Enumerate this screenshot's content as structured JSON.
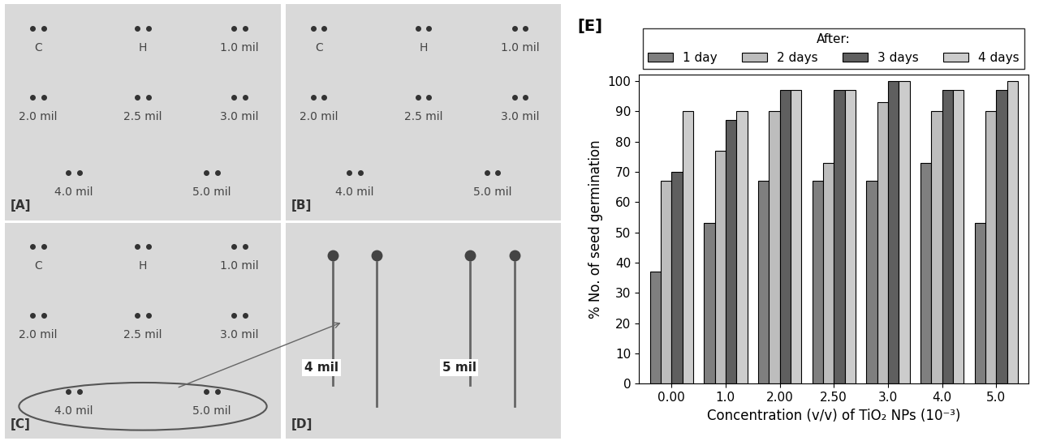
{
  "chart_data": {
    "type": "bar",
    "title": "[E]",
    "x_label": "Concentration (v/v) of TiO₂ NPs (10⁻³)",
    "y_label": "% No. of seed germination",
    "categories": [
      "0.00",
      "1.0",
      "2.00",
      "2.50",
      "3.0",
      "4.0",
      "5.0"
    ],
    "legend_title": "After:",
    "series": [
      {
        "name": "1 day",
        "color": "#7f7f7f",
        "values": [
          37,
          53,
          67,
          67,
          67,
          73,
          53
        ]
      },
      {
        "name": "2 days",
        "color": "#bdbdbd",
        "values": [
          67,
          77,
          90,
          73,
          93,
          90,
          90
        ]
      },
      {
        "name": "3 days",
        "color": "#5f5f5f",
        "values": [
          70,
          87,
          97,
          97,
          100,
          97,
          97
        ]
      },
      {
        "name": "4 days",
        "color": "#cccccc",
        "values": [
          90,
          90,
          97,
          97,
          100,
          97,
          100
        ]
      }
    ],
    "ylim": [
      0,
      102
    ],
    "yticks": [
      0,
      10,
      20,
      30,
      40,
      50,
      60,
      70,
      80,
      90,
      100
    ],
    "legend": "upper center",
    "grid": false
  },
  "panels": [
    {
      "label": "[A]",
      "texts": [
        "C",
        "H",
        "1.0 mil",
        "2.0 mil",
        "2.5 mil",
        "3.0 mil",
        "4.0 mil",
        "5.0 mil"
      ]
    },
    {
      "label": "[B]",
      "texts": [
        "C",
        "H",
        "1.0 mil",
        "2.0 mil",
        "2.5 mil",
        "3.0 mil",
        "4.0 mil",
        "5.0 mil"
      ]
    },
    {
      "label": "[C]",
      "texts": [
        "C",
        "H",
        "1.0 mil",
        "2.0 mil",
        "2.5 mil",
        "3.0 mil",
        "4.0 mil",
        "5.0 mil"
      ]
    },
    {
      "label": "[D]",
      "texts": [
        "4 mil",
        "5 mil"
      ]
    }
  ]
}
